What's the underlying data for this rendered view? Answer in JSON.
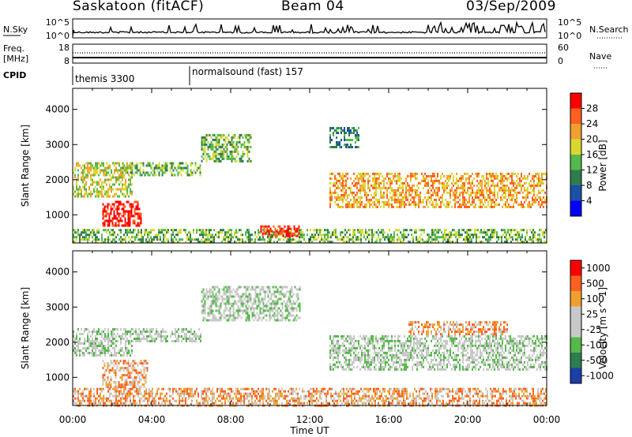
{
  "header": {
    "station": "Saskatoon (fitACF)",
    "beam": "Beam 04",
    "date": "03/Sep/2009"
  },
  "top_panels": {
    "nsky_label": "N.Sky",
    "nsky_ticks": [
      "10^5",
      "10^0"
    ],
    "nsearch_label": "N.Search",
    "nsearch_ticks": [
      "10^5",
      "10^0"
    ],
    "freq_label_1": "Freq.",
    "freq_label_2": "[MHz]",
    "freq_ticks": [
      "18",
      "8"
    ],
    "nave_label": "Nave",
    "nave_ticks": [
      "60",
      "0"
    ],
    "cpid_label": "CPID",
    "cpid_segments": [
      "themis 3300",
      "normalsound (fast) 157"
    ]
  },
  "chart_data": [
    {
      "type": "heatmap",
      "panel": "power",
      "ylabel": "Slant Range [km]",
      "yticks": [
        "1000",
        "2000",
        "3000",
        "4000"
      ],
      "ylim": [
        200,
        4600
      ],
      "xlim_hours": [
        0,
        24
      ],
      "colorbar_label": "Power [dB]",
      "colorbar_ticks": [
        "4",
        "8",
        "12",
        "16",
        "20",
        "24",
        "28"
      ],
      "colors": [
        "#0000ff",
        "#1c4fa8",
        "#2e7d4f",
        "#55b84a",
        "#d8d830",
        "#f0a030",
        "#ff6020",
        "#ff0000"
      ],
      "echo_regions": [
        {
          "t0": 0.0,
          "t1": 24.0,
          "r0": 200,
          "r1": 600,
          "level": 3
        },
        {
          "t0": 1.5,
          "t1": 3.5,
          "r0": 700,
          "r1": 1400,
          "level": 7
        },
        {
          "t0": 0.0,
          "t1": 3.0,
          "r0": 1500,
          "r1": 2500,
          "level": 4
        },
        {
          "t0": 2.5,
          "t1": 6.5,
          "r0": 2100,
          "r1": 2500,
          "level": 3
        },
        {
          "t0": 6.5,
          "t1": 9.0,
          "r0": 2500,
          "r1": 3300,
          "level": 3
        },
        {
          "t0": 9.5,
          "t1": 11.5,
          "r0": 400,
          "r1": 700,
          "level": 7
        },
        {
          "t0": 13.0,
          "t1": 24.0,
          "r0": 1200,
          "r1": 2200,
          "level": 5
        },
        {
          "t0": 13.0,
          "t1": 14.5,
          "r0": 2900,
          "r1": 3500,
          "level": 2
        }
      ],
      "xticks": [
        "00:00",
        "04:00",
        "08:00",
        "12:00",
        "16:00",
        "20:00",
        "00:00"
      ]
    },
    {
      "type": "heatmap",
      "panel": "velocity",
      "ylabel": "Slant Range [km]",
      "yticks": [
        "1000",
        "2000",
        "3000",
        "4000"
      ],
      "ylim": [
        200,
        4600
      ],
      "xlim_hours": [
        0,
        24
      ],
      "colorbar_label": "Velocity [m s^-1]",
      "colorbar_ticks": [
        "1000",
        "500",
        "100",
        "25",
        "-25",
        "-100",
        "-500",
        "-1000"
      ],
      "colors": [
        "#1c3fa8",
        "#2e7d4f",
        "#55b84a",
        "#c8c8c8",
        "#c8c8c8",
        "#f0a030",
        "#ff6020",
        "#ff0000"
      ],
      "echo_regions": [
        {
          "t0": 0.0,
          "t1": 24.0,
          "r0": 200,
          "r1": 700,
          "level": 5
        },
        {
          "t0": 1.5,
          "t1": 3.8,
          "r0": 700,
          "r1": 1500,
          "level": 5
        },
        {
          "t0": 0.0,
          "t1": 3.0,
          "r0": 1600,
          "r1": 2400,
          "level": 3
        },
        {
          "t0": 3.0,
          "t1": 6.5,
          "r0": 2000,
          "r1": 2400,
          "level": 3
        },
        {
          "t0": 6.5,
          "t1": 11.5,
          "r0": 2600,
          "r1": 3600,
          "level": 3
        },
        {
          "t0": 13.0,
          "t1": 24.0,
          "r0": 1200,
          "r1": 2200,
          "level": 3
        },
        {
          "t0": 17.0,
          "t1": 22.0,
          "r0": 2200,
          "r1": 2600,
          "level": 5
        }
      ],
      "xticks": [
        "00:00",
        "04:00",
        "08:00",
        "12:00",
        "16:00",
        "20:00",
        "00:00"
      ],
      "xlabel": "Time UT"
    }
  ]
}
